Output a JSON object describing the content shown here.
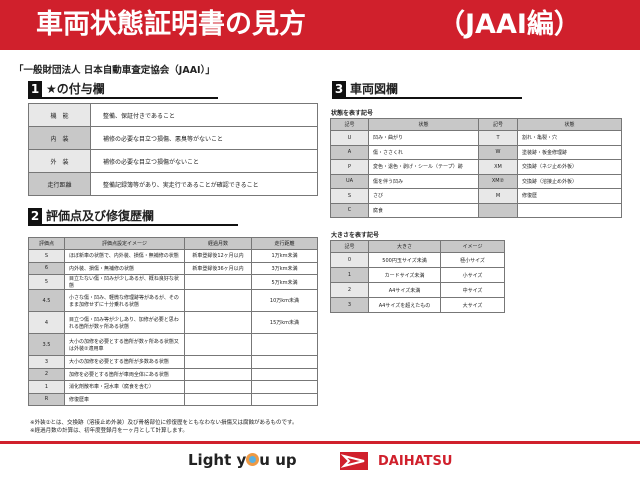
{
  "header": {
    "title": "車両状態証明書の見方",
    "suffix": "（JAAI編）"
  },
  "subtitle": "「一般財団法人 日本自動車査定協会（JAAI）」",
  "section1": {
    "num": "1",
    "title": "★の付与欄",
    "rows": [
      {
        "k": "機　能",
        "v": "整備、保証付きであること"
      },
      {
        "k": "内　装",
        "v": "補修の必要な目立つ損傷、悪臭等がないこと"
      },
      {
        "k": "外　装",
        "v": "補修の必要な目立つ損傷がないこと"
      },
      {
        "k": "走行距離",
        "v": "整備記録簿等があり、実走行であることが確認できること"
      }
    ]
  },
  "section2": {
    "num": "2",
    "title": "評価点及び修復歴欄",
    "headers": [
      "評価点",
      "評価点設定イメージ",
      "経過月数",
      "走行距離"
    ],
    "rows": [
      [
        "S",
        "ほぼ新車の状態で、内外装、損傷・無補修の状態",
        "新車登録後12ヶ月以内",
        "1万km未満"
      ],
      [
        "6",
        "内外装、損傷・無補修の状態",
        "新車登録後36ヶ月以内",
        "3万km未満"
      ],
      [
        "5",
        "目立たない傷・凹みが少しあるが、概ね良好な状態",
        "",
        "5万km未満"
      ],
      [
        "4.5",
        "小さな傷・凹み、軽微な修理跡等があるが、そのまま加修せずに十分乗れる状態",
        "",
        "10万km未満"
      ],
      [
        "4",
        "目立つ傷・凹み等が少しあり、加修が必要と思われる箇所が数ヶ所ある状態",
        "",
        "15万km未満"
      ],
      [
        "3.5",
        "大小の加修を必要とする箇所が数ヶ所ある状態又は外装②適用車",
        "",
        ""
      ],
      [
        "3",
        "大小の加修を必要とする箇所が多数ある状態",
        "",
        ""
      ],
      [
        "2",
        "加修を必要とする箇所が車両全体にある状態",
        "",
        ""
      ],
      [
        "1",
        "消化剤散布車・冠水車（腐食を含む）",
        "",
        ""
      ],
      [
        "R",
        "修復歴車",
        "",
        ""
      ]
    ]
  },
  "notes": [
    "※外装②とは、交換跡（溶接止め外装）及び骨格部位に修復歴をともなわない損傷又は腐蝕があるものです。",
    "※経過月数の計算は、初年度登録月を一ヶ月として計算します。"
  ],
  "section3": {
    "num": "3",
    "title": "車両図欄",
    "caption1": "状態を表す記号",
    "headers": [
      "記号",
      "状態",
      "記号",
      "状態"
    ],
    "rows": [
      [
        "U",
        "凹み・曲がり",
        "T",
        "割れ・亀裂・穴"
      ],
      [
        "A",
        "傷・ささくれ",
        "W",
        "塗装跡・板金修理跡"
      ],
      [
        "P",
        "変色・退色・剥げ・シール（テープ）跡",
        "XM",
        "交換跡（ネジ止め外板）"
      ],
      [
        "UA",
        "傷を伴う凹み",
        "XM②",
        "交換跡（溶接止め外板）"
      ],
      [
        "S",
        "さび",
        "M",
        "修復歴"
      ],
      [
        "C",
        "腐食",
        "",
        ""
      ]
    ],
    "caption2": "大きさを表す記号",
    "size_headers": [
      "記号",
      "大きさ",
      "イメージ"
    ],
    "size_rows": [
      [
        "0",
        "500円玉サイズ未満",
        "極小サイズ"
      ],
      [
        "1",
        "カードサイズ未満",
        "小サイズ"
      ],
      [
        "2",
        "A4サイズ未満",
        "中サイズ"
      ],
      [
        "3",
        "A4サイズを超えたもの",
        "大サイズ"
      ]
    ]
  },
  "footer": {
    "slogan_a": "Light y",
    "slogan_b": "u up",
    "brand": "DAIHATSU"
  },
  "colors": {
    "accent": "#d0202c"
  }
}
